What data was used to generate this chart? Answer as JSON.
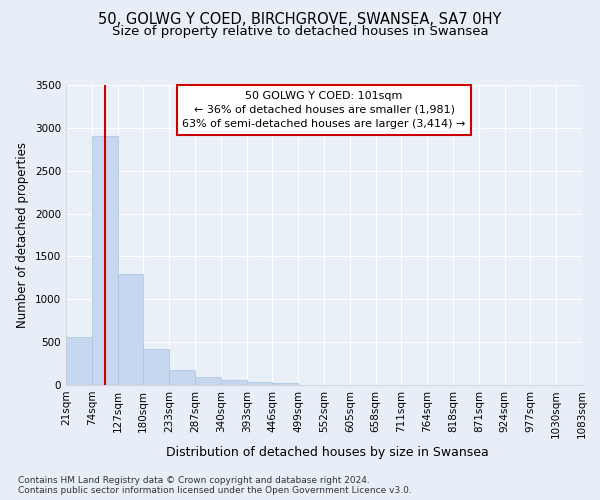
{
  "title1": "50, GOLWG Y COED, BIRCHGROVE, SWANSEA, SA7 0HY",
  "title2": "Size of property relative to detached houses in Swansea",
  "xlabel": "Distribution of detached houses by size in Swansea",
  "ylabel": "Number of detached properties",
  "footer1": "Contains HM Land Registry data © Crown copyright and database right 2024.",
  "footer2": "Contains public sector information licensed under the Open Government Licence v3.0.",
  "bins": [
    21,
    74,
    127,
    180,
    233,
    287,
    340,
    393,
    446,
    499,
    552,
    605,
    658,
    711,
    764,
    818,
    871,
    924,
    977,
    1030,
    1083
  ],
  "bin_labels": [
    "21sqm",
    "74sqm",
    "127sqm",
    "180sqm",
    "233sqm",
    "287sqm",
    "340sqm",
    "393sqm",
    "446sqm",
    "499sqm",
    "552sqm",
    "605sqm",
    "658sqm",
    "711sqm",
    "764sqm",
    "818sqm",
    "871sqm",
    "924sqm",
    "977sqm",
    "1030sqm",
    "1083sqm"
  ],
  "counts": [
    560,
    2900,
    1300,
    415,
    170,
    90,
    60,
    35,
    25,
    0,
    0,
    0,
    0,
    0,
    0,
    0,
    0,
    0,
    0,
    0
  ],
  "bar_color": "#c5d8f0",
  "bar_edge_color": "#a8c4e0",
  "property_size": 101,
  "vline_color": "#cc0000",
  "annotation_text": "  50 GOLWG Y COED: 101sqm  \n← 36% of detached houses are smaller (1,981)\n63% of semi-detached houses are larger (3,414) →",
  "annotation_box_color": "#ffffff",
  "annotation_border_color": "#cc0000",
  "ylim": [
    0,
    3500
  ],
  "yticks": [
    0,
    500,
    1000,
    1500,
    2000,
    2500,
    3000,
    3500
  ],
  "bg_color": "#e8eef8",
  "plot_bg_color": "#eaf0f8",
  "grid_color": "#ffffff",
  "title1_fontsize": 10.5,
  "title2_fontsize": 9.5,
  "xlabel_fontsize": 9,
  "ylabel_fontsize": 8.5,
  "tick_fontsize": 7.5,
  "footer_fontsize": 6.5
}
